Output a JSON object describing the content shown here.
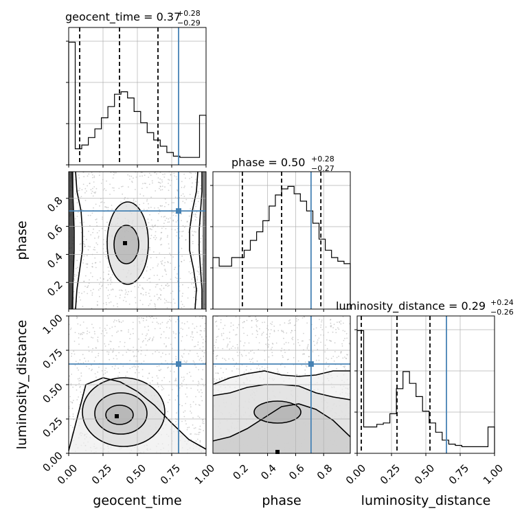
{
  "chart_data": {
    "type": "corner",
    "truth_color": "#4682b4",
    "parameters": [
      {
        "name": "geocent_time",
        "xlabel": "geocent_time",
        "title": {
          "prefix": "geocent_time = ",
          "median": "0.37",
          "upper": "+0.28",
          "lower": "−0.29",
          "median_value": 0.37,
          "q16": 0.08,
          "q84": 0.65
        },
        "truth": 0.8,
        "range": [
          0,
          1
        ],
        "ticks": [
          0,
          0.25,
          0.5,
          0.75,
          1.0
        ],
        "tick_labels": [
          "0.00",
          "0.25",
          "0.50",
          "0.75",
          "1.00"
        ],
        "hist": [
          0.99,
          0.13,
          0.16,
          0.22,
          0.29,
          0.38,
          0.47,
          0.57,
          0.59,
          0.54,
          0.43,
          0.34,
          0.26,
          0.2,
          0.15,
          0.1,
          0.07,
          0.06,
          0.06,
          0.06,
          0.4
        ]
      },
      {
        "name": "phase",
        "xlabel": "phase",
        "title": {
          "prefix": "phase = ",
          "median": "0.50",
          "upper": "+0.28",
          "lower": "−0.27",
          "median_value": 0.5,
          "q16": 0.22,
          "q84": 0.78
        },
        "truth": 0.71,
        "range": [
          0.01,
          0.99
        ],
        "ticks": [
          0.2,
          0.4,
          0.6,
          0.8
        ],
        "tick_labels": [
          "0.2",
          "0.4",
          "0.6",
          "0.8"
        ],
        "hist": [
          0.42,
          0.35,
          0.35,
          0.42,
          0.42,
          0.48,
          0.56,
          0.63,
          0.72,
          0.84,
          0.93,
          0.98,
          1.0,
          0.94,
          0.88,
          0.8,
          0.7,
          0.57,
          0.48,
          0.42,
          0.39,
          0.37
        ]
      },
      {
        "name": "luminosity_distance",
        "xlabel": "luminosity_distance",
        "title": {
          "prefix": "luminosity_distance = ",
          "median": "0.29",
          "upper": "+0.24",
          "lower": "−0.26",
          "median_value": 0.29,
          "q16": 0.03,
          "q84": 0.53
        },
        "truth": 0.65,
        "range": [
          0,
          1
        ],
        "ticks": [
          0,
          0.25,
          0.5,
          0.75,
          1.0
        ],
        "tick_labels": [
          "0.00",
          "0.25",
          "0.50",
          "0.75",
          "1.00"
        ],
        "hist": [
          0.93,
          0.2,
          0.2,
          0.22,
          0.23,
          0.3,
          0.49,
          0.62,
          0.53,
          0.43,
          0.32,
          0.23,
          0.16,
          0.1,
          0.07,
          0.06,
          0.05,
          0.05,
          0.05,
          0.05,
          0.2
        ]
      }
    ],
    "pairs": [
      {
        "x": "geocent_time",
        "y": "phase",
        "truth": [
          0.8,
          0.71
        ],
        "mode": [
          0.41,
          0.48
        ],
        "contours": [
          {
            "level": 0.39,
            "kind": "island",
            "cx": 0.42,
            "cy": 0.47,
            "rx": 0.09,
            "ry": 0.14
          },
          {
            "level": 0.86,
            "kind": "island",
            "cx": 0.43,
            "cy": 0.48,
            "rx": 0.15,
            "ry": 0.3
          },
          {
            "level": 0.99,
            "kind": "band",
            "lo": [
              0.05,
              0.06,
              0.08,
              0.1,
              0.1,
              0.09,
              0.06,
              0.05
            ],
            "hi": [
              0.92,
              0.93,
              0.91,
              0.88,
              0.88,
              0.9,
              0.93,
              0.94
            ]
          },
          {
            "level": 0.999,
            "kind": "band",
            "lo": [
              0.025,
              0.03,
              0.035,
              0.04,
              0.04,
              0.035,
              0.03,
              0.025
            ],
            "hi": [
              0.97,
              0.97,
              0.96,
              0.95,
              0.95,
              0.96,
              0.97,
              0.97
            ]
          }
        ]
      },
      {
        "x": "geocent_time",
        "y": "luminosity_distance",
        "truth": [
          0.8,
          0.65
        ],
        "mode": [
          0.35,
          0.27
        ],
        "contours": [
          {
            "level": 0.39,
            "kind": "island",
            "cx": 0.37,
            "cy": 0.28,
            "rx": 0.1,
            "ry": 0.07
          },
          {
            "level": 0.68,
            "kind": "island",
            "cx": 0.38,
            "cy": 0.29,
            "rx": 0.19,
            "ry": 0.15
          },
          {
            "level": 0.86,
            "kind": "island",
            "cx": 0.4,
            "cy": 0.3,
            "rx": 0.3,
            "ry": 0.25
          },
          {
            "level": 0.99,
            "kind": "floor",
            "top": [
              0.02,
              0.5,
              0.55,
              0.52,
              0.45,
              0.35,
              0.22,
              0.1,
              0.03
            ]
          }
        ]
      },
      {
        "x": "phase",
        "y": "luminosity_distance",
        "truth": [
          0.71,
          0.65
        ],
        "mode": [
          0.47,
          0.01
        ],
        "contours": [
          {
            "level": 0.39,
            "kind": "island",
            "cx": 0.47,
            "cy": 0.3,
            "rx": 0.17,
            "ry": 0.08
          },
          {
            "level": 0.68,
            "kind": "floor",
            "top": [
              0.09,
              0.12,
              0.18,
              0.26,
              0.34,
              0.36,
              0.32,
              0.24,
              0.12
            ]
          },
          {
            "level": 0.86,
            "kind": "floor",
            "top": [
              0.42,
              0.44,
              0.48,
              0.5,
              0.5,
              0.49,
              0.44,
              0.41,
              0.39
            ]
          },
          {
            "level": 0.99,
            "kind": "floor",
            "top": [
              0.5,
              0.55,
              0.58,
              0.6,
              0.57,
              0.56,
              0.57,
              0.6,
              0.6
            ]
          }
        ]
      }
    ]
  }
}
